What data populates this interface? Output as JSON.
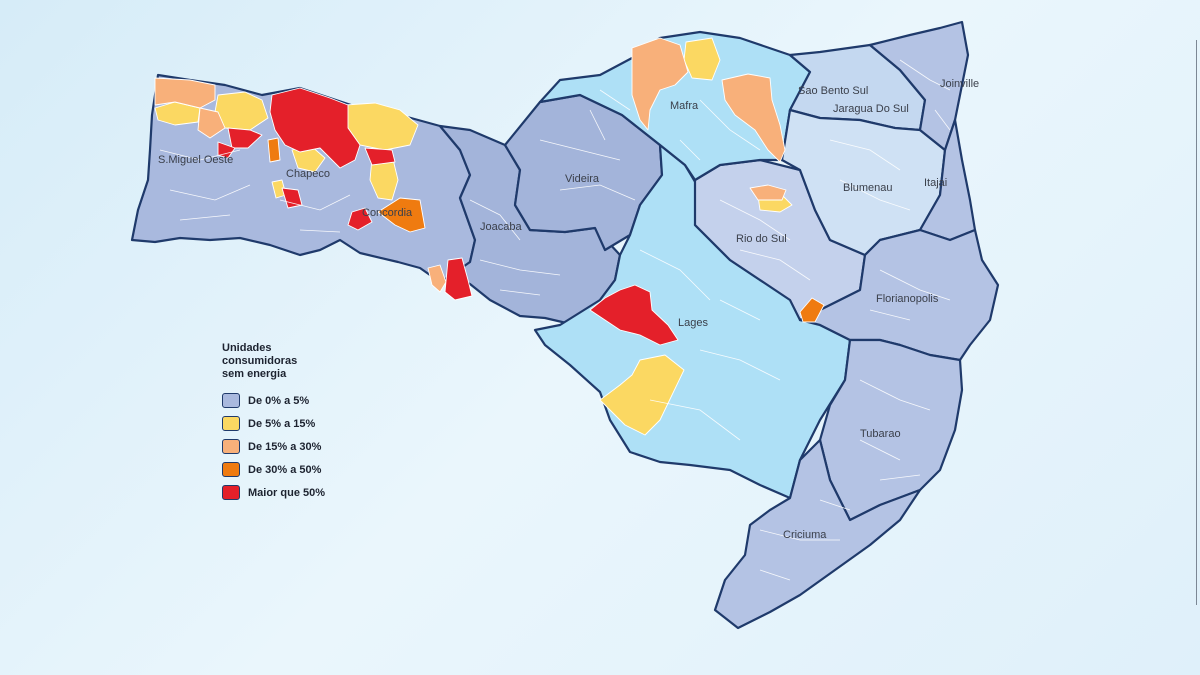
{
  "legend": {
    "title_lines": [
      "Unidades",
      "consumidoras",
      "sem energia"
    ],
    "items": [
      {
        "label": "De 0% a 5%",
        "color": "#a9b9de"
      },
      {
        "label": "De 5% a 15%",
        "color": "#fbd862"
      },
      {
        "label": "De 15% a 30%",
        "color": "#f8b07a"
      },
      {
        "label": "De 30% a 50%",
        "color": "#ef7b10"
      },
      {
        "label": "Maior que 50%",
        "color": "#e4202a"
      }
    ]
  },
  "cities": [
    "S.Miguel Oeste",
    "Chapeco",
    "Concordia",
    "Joacaba",
    "Videira",
    "Mafra",
    "Sao Bento Sul",
    "Jaragua Do Sul",
    "Joinville",
    "Blumenau",
    "Itajai",
    "Rio do Sul",
    "Lages",
    "Florianopolis",
    "Tubarao",
    "Criciuma"
  ],
  "colors": {
    "background": "#e6f4fb",
    "region_border": "#1f3a6b",
    "municipality_border": "#ffffff",
    "light_blue_region": "#aee0f6"
  }
}
